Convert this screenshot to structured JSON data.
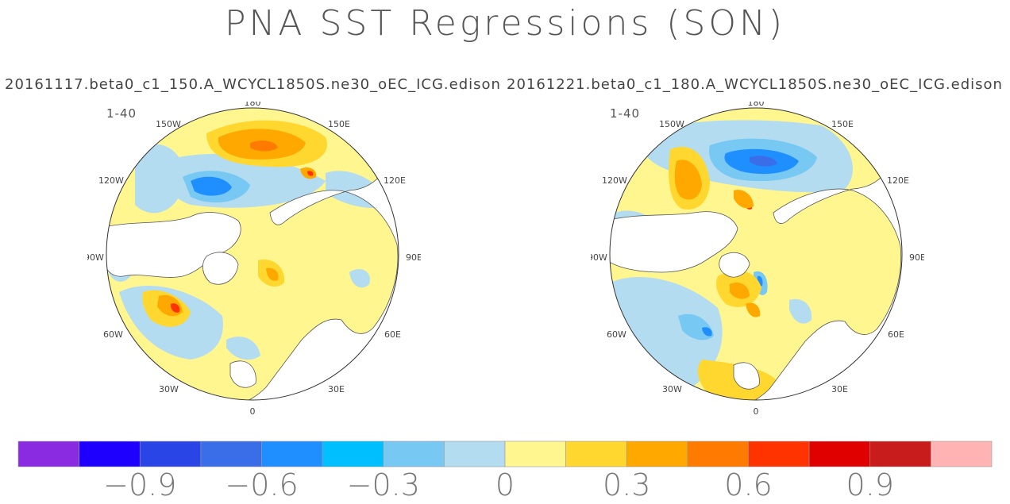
{
  "title": "PNA SST Regressions (SON)",
  "panels": [
    {
      "subtitle": "20161117.beta0_c1_150.A_WCYCL1850S.ne30_oEC_ICG.edison",
      "range": "1-40",
      "lon_labels": [
        "180",
        "150E",
        "120E",
        "90E",
        "60E",
        "30E",
        "0",
        "30W",
        "60W",
        "90W",
        "120W",
        "150W"
      ]
    },
    {
      "subtitle": "20161221.beta0_c1_180.A_WCYCL1850S.ne30_oEC_ICG.edison",
      "range": "1-40",
      "lon_labels": [
        "180",
        "150E",
        "120E",
        "90E",
        "60E",
        "30E",
        "0",
        "30W",
        "60W",
        "90W",
        "120W",
        "150W"
      ]
    }
  ],
  "chart_data": {
    "type": "heatmap",
    "projection": "north polar stereographic",
    "title": "PNA SST Regressions (SON)",
    "panel_titles": [
      "20161117.beta0_c1_150.A_WCYCL1850S.ne30_oEC_ICG.edison",
      "20161221.beta0_c1_180.A_WCYCL1850S.ne30_oEC_ICG.edison"
    ],
    "colorbar": {
      "colors": [
        "#8a2be2",
        "#1e00ff",
        "#2a45e6",
        "#3a6ee8",
        "#1f8fff",
        "#00bfff",
        "#78c8f4",
        "#b4dcf0",
        "#fff68f",
        "#ffd72e",
        "#ffa900",
        "#ff7a00",
        "#ff3300",
        "#e00000",
        "#c81c1c",
        "#ffb3b3"
      ],
      "tick_labels": [
        "−0.9",
        "−0.6",
        "−0.3",
        "0",
        "0.3",
        "0.6",
        "0.9"
      ],
      "tick_values": [
        -0.9,
        -0.6,
        -0.3,
        0,
        0.3,
        0.6,
        0.9
      ],
      "boundaries": [
        -1.05,
        -0.9,
        -0.75,
        -0.6,
        -0.45,
        -0.3,
        -0.15,
        0,
        0.15,
        0.3,
        0.45,
        0.6,
        0.75,
        0.9,
        1.05
      ]
    },
    "land_color": "#ffffff",
    "background_ocean_color": "#fff68f"
  }
}
